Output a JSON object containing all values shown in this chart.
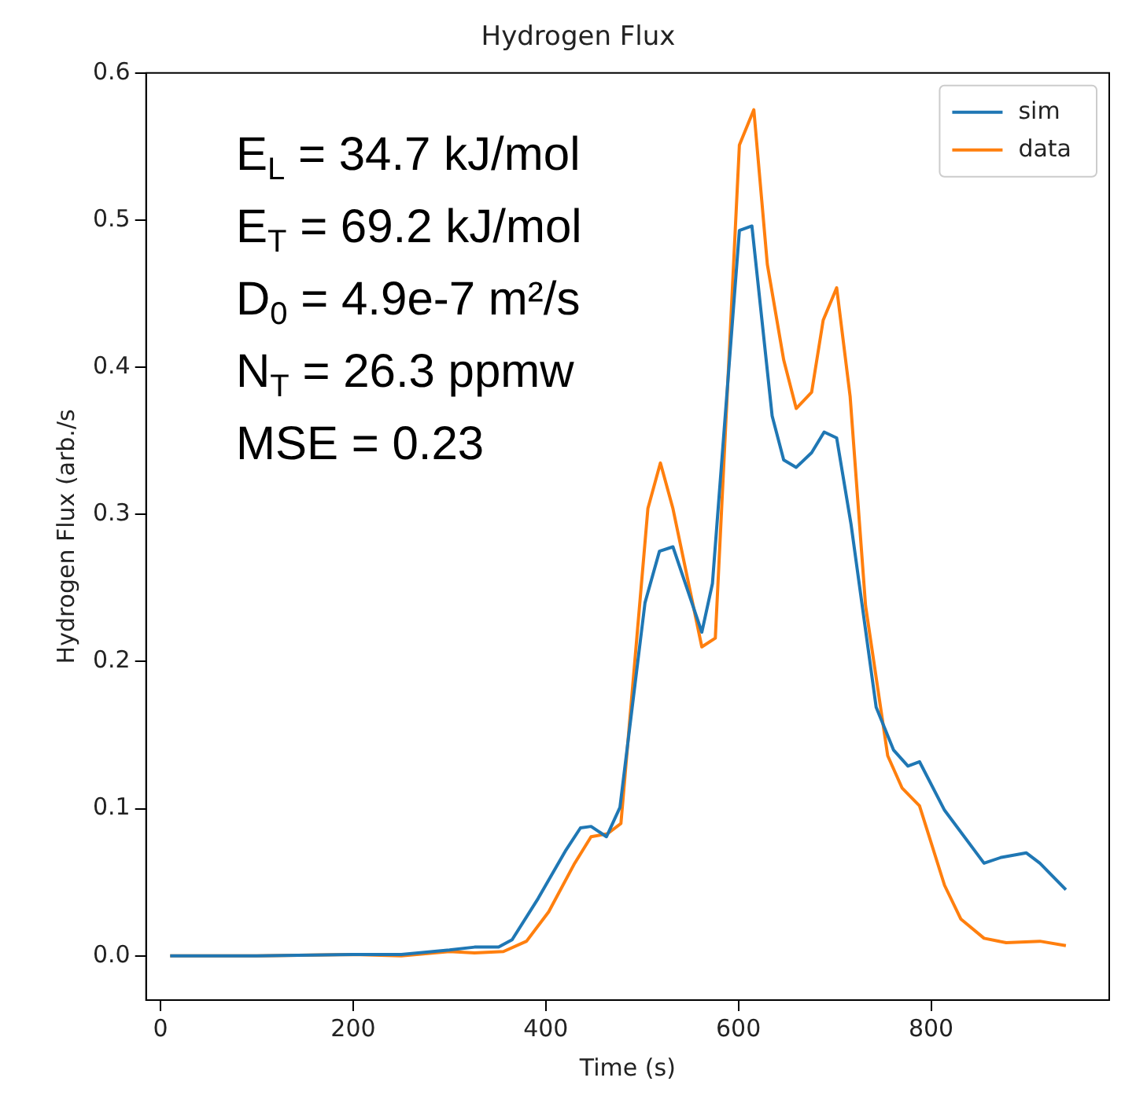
{
  "chart_data": {
    "type": "line",
    "title": "Hydrogen Flux",
    "xlabel": "Time (s)",
    "ylabel": "Hydrogen Flux (arb./s",
    "xlim": [
      -15,
      985
    ],
    "xticks": [
      0,
      200,
      400,
      600,
      800
    ],
    "ylim": [
      -0.03,
      0.6
    ],
    "yticks": [
      {
        "value": 0,
        "label": "0.0"
      },
      0.1,
      0.2,
      0.3,
      0.4,
      0.5,
      0.6
    ],
    "grid": false,
    "legend": "top right",
    "marker": "none",
    "line_style": "solid",
    "annotations": [
      "E$_{L}$ = 34.7 kJ/mol",
      "E$_{T}$ = 69.2 kJ/mol",
      "D$_{0}$ = 4.9e-7 m²/s",
      "N$_{T}$ = 26.3 ppmw",
      "MSE = 0.23"
    ],
    "series": [
      {
        "name": "sim",
        "color": "#1f77b4",
        "x": [
          10,
          100,
          200,
          250,
          300,
          326,
          351,
          365,
          392,
          421,
          436,
          447,
          463,
          477,
          503,
          518,
          532,
          562,
          573,
          601,
          614,
          635,
          647,
          660,
          676,
          689,
          702,
          717,
          743,
          761,
          776,
          788,
          814,
          855,
          873,
          899,
          913,
          940
        ],
        "values": [
          0,
          0,
          0.001,
          0.001,
          0.004,
          0.006,
          0.006,
          0.011,
          0.039,
          0.072,
          0.087,
          0.088,
          0.081,
          0.101,
          0.24,
          0.275,
          0.278,
          0.22,
          0.253,
          0.493,
          0.496,
          0.367,
          0.337,
          0.332,
          0.342,
          0.356,
          0.352,
          0.293,
          0.169,
          0.14,
          0.129,
          0.132,
          0.099,
          0.063,
          0.067,
          0.07,
          0.063,
          0.045
        ]
      },
      {
        "name": "data",
        "color": "#ff7f0e",
        "x": [
          10,
          100,
          200,
          250,
          300,
          326,
          356,
          380,
          403,
          430,
          447,
          464,
          478,
          506,
          519,
          532,
          562,
          576,
          601,
          616,
          630,
          647,
          660,
          676,
          688,
          702,
          716,
          732,
          755,
          770,
          788,
          814,
          831,
          855,
          878,
          913,
          940
        ],
        "values": [
          0,
          0,
          0.001,
          0,
          0.003,
          0.002,
          0.003,
          0.01,
          0.03,
          0.063,
          0.081,
          0.083,
          0.09,
          0.304,
          0.335,
          0.304,
          0.21,
          0.216,
          0.551,
          0.575,
          0.47,
          0.405,
          0.372,
          0.383,
          0.432,
          0.454,
          0.38,
          0.238,
          0.136,
          0.114,
          0.102,
          0.048,
          0.025,
          0.012,
          0.009,
          0.01,
          0.007
        ]
      }
    ]
  }
}
